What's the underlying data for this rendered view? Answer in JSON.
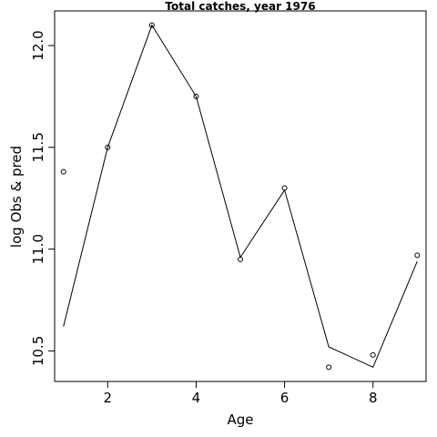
{
  "chart_data": {
    "type": "line",
    "title": "Total catches, year 1976",
    "xlabel": "Age",
    "ylabel": "log Obs & pred",
    "xlim": [
      0.8,
      9.2
    ],
    "ylim": [
      10.35,
      12.17
    ],
    "x_ticks": [
      {
        "value": 2,
        "label": "2"
      },
      {
        "value": 4,
        "label": "4"
      },
      {
        "value": 6,
        "label": "6"
      },
      {
        "value": 8,
        "label": "8"
      }
    ],
    "y_ticks": [
      {
        "value": 10.5,
        "label": "10.5"
      },
      {
        "value": 11.0,
        "label": "11.0"
      },
      {
        "value": 11.5,
        "label": "11.5"
      },
      {
        "value": 12.0,
        "label": "12.0"
      }
    ],
    "grid": false,
    "series": [
      {
        "kind": "points",
        "x": [
          1,
          2,
          3,
          4,
          5,
          6,
          7,
          8,
          9
        ],
        "values": [
          11.38,
          11.5,
          12.1,
          11.75,
          10.95,
          11.3,
          10.42,
          10.48,
          10.97
        ]
      },
      {
        "kind": "line",
        "x": [
          1,
          2,
          3,
          4,
          5,
          6,
          7,
          8,
          9
        ],
        "values": [
          10.62,
          11.5,
          12.1,
          11.75,
          10.96,
          11.29,
          10.52,
          10.42,
          10.94
        ]
      }
    ]
  }
}
